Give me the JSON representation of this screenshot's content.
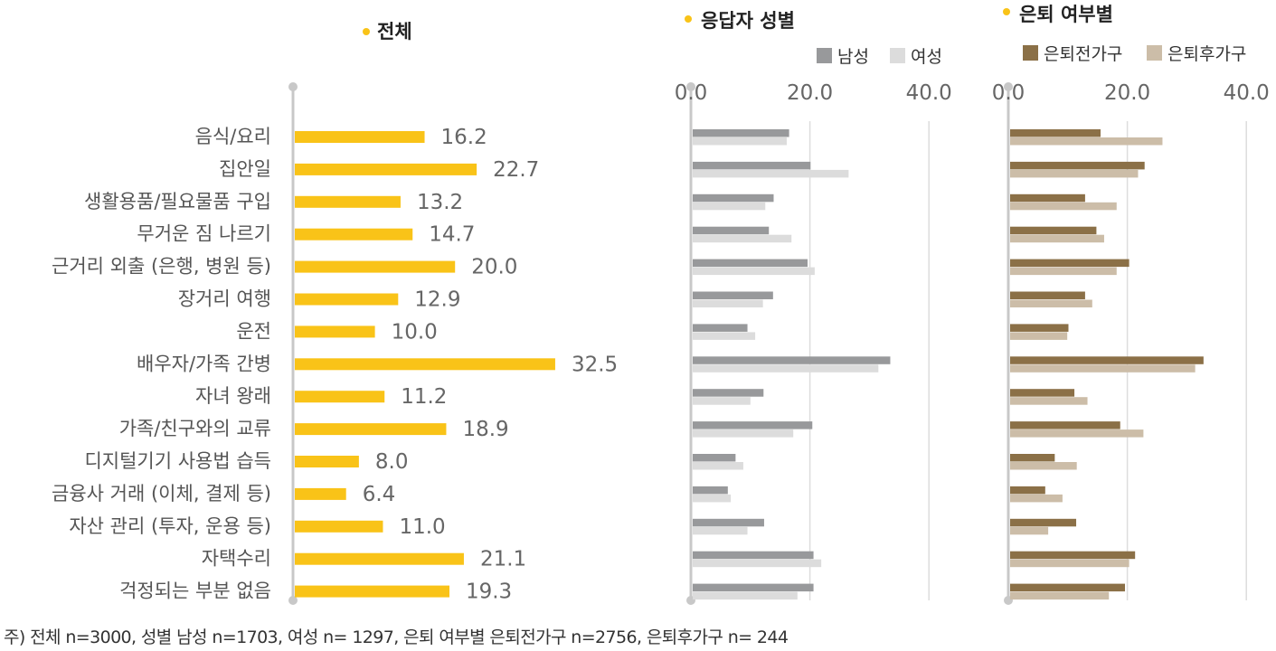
{
  "chart_data": [
    {
      "type": "bar",
      "orientation": "horizontal",
      "title": "전체",
      "categories": [
        "음식/요리",
        "집안일",
        "생활용품/필요물품 구입",
        "무거운 짐 나르기",
        "근거리 외출 (은행, 병원 등)",
        "장거리 여행",
        "운전",
        "배우자/가족 간병",
        "자녀 왕래",
        "가족/친구와의 교류",
        "디지털기기 사용법 습득",
        "금융사 거래 (이체, 결제 등)",
        "자산 관리 (투자, 운용 등)",
        "자택수리",
        "걱정되는 부분 없음"
      ],
      "value_labels": [
        "16.2",
        "22.7",
        "13.2",
        "14.7",
        "20.0",
        "12.9",
        "10.0",
        "32.5",
        "11.2",
        "18.9",
        "8.0",
        "6.4",
        "11.0",
        "21.1",
        "19.3"
      ],
      "values": [
        16.2,
        22.7,
        13.2,
        14.7,
        20.0,
        12.9,
        10.0,
        32.5,
        11.2,
        18.9,
        8.0,
        6.4,
        11.0,
        21.1,
        19.3
      ],
      "xlim": [
        0,
        40
      ],
      "color": "#F9C318"
    },
    {
      "type": "bar",
      "orientation": "horizontal",
      "title": "응답자 성별",
      "xlim": [
        0,
        40
      ],
      "ticks": [
        "0.0",
        "20.0",
        "40.0"
      ],
      "grid": true,
      "legend": "top",
      "series": [
        {
          "name": "남성",
          "color": "#98999B",
          "values": [
            16.2,
            19.8,
            13.6,
            12.8,
            19.3,
            13.5,
            9.2,
            33.2,
            11.9,
            20.1,
            7.2,
            5.9,
            12.0,
            20.3,
            20.3
          ]
        },
        {
          "name": "여성",
          "color": "#DCDCDC",
          "values": [
            15.8,
            26.2,
            12.2,
            16.6,
            20.5,
            11.8,
            10.5,
            31.2,
            9.7,
            16.9,
            8.5,
            6.4,
            9.2,
            21.6,
            17.6
          ]
        }
      ]
    },
    {
      "type": "bar",
      "orientation": "horizontal",
      "title": "은퇴 여부별",
      "xlim": [
        0,
        40
      ],
      "ticks": [
        "0.0",
        "20.0",
        "40.0"
      ],
      "grid": true,
      "legend": "top",
      "series": [
        {
          "name": "은퇴전가구",
          "color": "#8B7047",
          "values": [
            15.2,
            22.6,
            12.6,
            14.5,
            20.0,
            12.6,
            9.8,
            32.5,
            10.8,
            18.5,
            7.5,
            5.9,
            11.1,
            21.0,
            19.3
          ]
        },
        {
          "name": "은퇴후가구",
          "color": "#CCBDA8",
          "values": [
            25.6,
            21.5,
            17.9,
            15.8,
            17.9,
            13.8,
            9.6,
            31.1,
            13.0,
            22.4,
            11.2,
            8.8,
            6.4,
            20.0,
            16.6
          ]
        }
      ]
    }
  ],
  "note": "주) 전체 n=3000, 성별 남성 n=1703, 여성 n= 1297, 은퇴 여부별 은퇴전가구 n=2756, 은퇴후가구 n= 244",
  "colors": {
    "bullet": "#F9C318",
    "axis": "#C8C8C8",
    "grid": "#DDDDDD"
  }
}
